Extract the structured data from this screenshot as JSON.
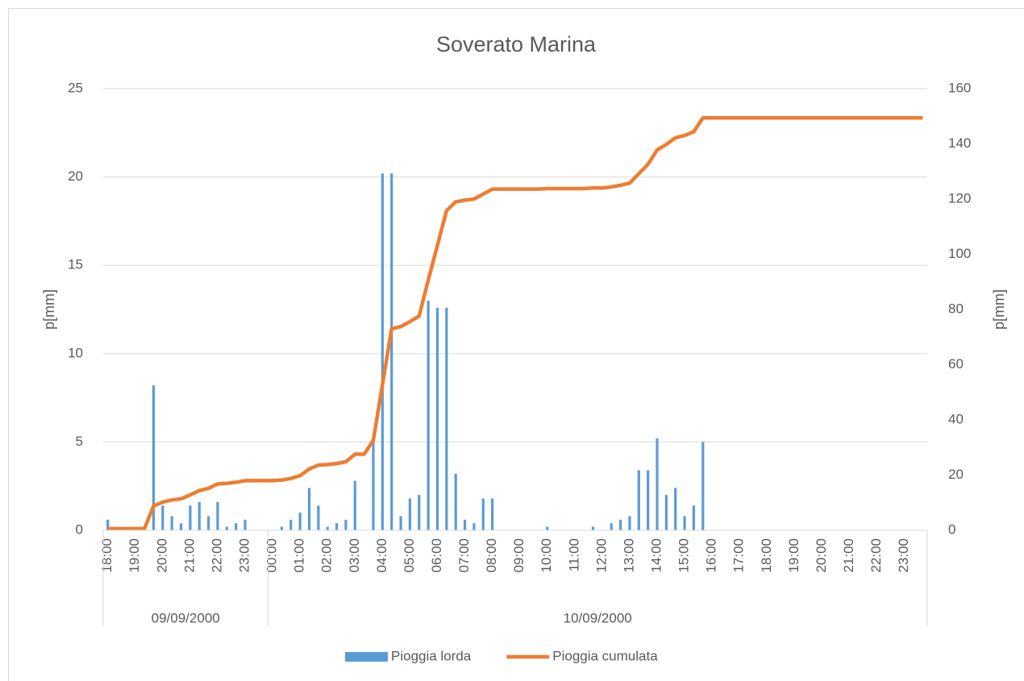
{
  "chart_data": {
    "type": "bar",
    "title": "Soverato Marina",
    "y_label": "p[mm]",
    "y2_label": "p[mm]",
    "category_groups": [
      {
        "label": "09/09/2000",
        "categories": [
          "18:00",
          null,
          null,
          "19:00",
          null,
          null,
          "20:00",
          null,
          null,
          "21:00",
          null,
          null,
          "22:00",
          null,
          null,
          "23:00",
          null,
          null
        ]
      },
      {
        "label": "10/09/2000",
        "categories": [
          "00:00",
          null,
          null,
          "01:00",
          null,
          null,
          "02:00",
          null,
          null,
          "03:00",
          null,
          null,
          "04:00",
          null,
          null,
          "05:00",
          null,
          null,
          "06:00",
          null,
          null,
          "07:00",
          null,
          null,
          "08:00",
          null,
          null,
          "09:00",
          null,
          null,
          "10:00",
          null,
          null,
          "11:00",
          null,
          null,
          "12:00",
          null,
          null,
          "13:00",
          null,
          null,
          "14:00",
          null,
          null,
          "15:00",
          null,
          null,
          "16:00",
          null,
          null,
          "17:00",
          null,
          null,
          "18:00",
          null,
          null,
          "19:00",
          null,
          null,
          "20:00",
          null,
          null,
          "21:00",
          null,
          null,
          "22:00",
          null,
          null,
          "23:00",
          null,
          null
        ]
      }
    ],
    "series": [
      {
        "name": "Pioggia lorda",
        "type": "bar",
        "color": "#5b9bd5",
        "axis": "y",
        "values": [
          0.6,
          0,
          0,
          0,
          0,
          8.2,
          1.4,
          0.8,
          0.4,
          1.4,
          1.6,
          0.8,
          1.6,
          0.2,
          0.4,
          0.6,
          0,
          0,
          0,
          0.2,
          0.6,
          1.0,
          2.4,
          1.4,
          0.2,
          0.4,
          0.6,
          2.8,
          0,
          5.0,
          20.2,
          20.2,
          0.8,
          1.8,
          2.0,
          13.0,
          12.6,
          12.6,
          3.2,
          0.6,
          0.4,
          1.8,
          1.8,
          0,
          0,
          0,
          0,
          0,
          0.2,
          0,
          0,
          0,
          0,
          0.2,
          0,
          0.4,
          0.6,
          0.8,
          3.4,
          3.4,
          5.2,
          2.0,
          2.4,
          0.8,
          1.4,
          5.0,
          0,
          0,
          0,
          0,
          0,
          0,
          0,
          0,
          0,
          0,
          0,
          0,
          0,
          0,
          0,
          0,
          0,
          0,
          0,
          0,
          0,
          0,
          0,
          0
        ]
      },
      {
        "name": "Pioggia cumulata",
        "type": "line",
        "color": "#ed7d31",
        "axis": "y2",
        "values": [
          0.6,
          0.6,
          0.6,
          0.6,
          0.6,
          8.8,
          10.2,
          11.0,
          11.4,
          12.8,
          14.4,
          15.2,
          16.8,
          17.0,
          17.4,
          18.0,
          18.0,
          18.0,
          18.0,
          18.2,
          18.8,
          19.8,
          22.2,
          23.6,
          23.8,
          24.2,
          24.8,
          27.6,
          27.6,
          32.6,
          52.8,
          73.0,
          73.8,
          75.6,
          77.6,
          90.6,
          103.2,
          115.8,
          119.0,
          119.6,
          120.0,
          121.8,
          123.6,
          123.6,
          123.6,
          123.6,
          123.6,
          123.6,
          123.8,
          123.8,
          123.8,
          123.8,
          123.8,
          124.0,
          124.0,
          124.4,
          125.0,
          125.8,
          129.2,
          132.6,
          137.8,
          139.8,
          142.2,
          143.0,
          144.4,
          149.4,
          149.4,
          149.4,
          149.4,
          149.4,
          149.4,
          149.4,
          149.4,
          149.4,
          149.4,
          149.4,
          149.4,
          149.4,
          149.4,
          149.4,
          149.4,
          149.4,
          149.4,
          149.4,
          149.4,
          149.4,
          149.4,
          149.4,
          149.4,
          149.4
        ]
      }
    ],
    "ylim": [
      0,
      25
    ],
    "yticks": [
      0,
      5,
      10,
      15,
      20,
      25
    ],
    "y2lim": [
      0,
      160
    ],
    "y2ticks": [
      0,
      20,
      40,
      60,
      80,
      100,
      120,
      140,
      160
    ],
    "grid": true,
    "legend": "bottom"
  }
}
